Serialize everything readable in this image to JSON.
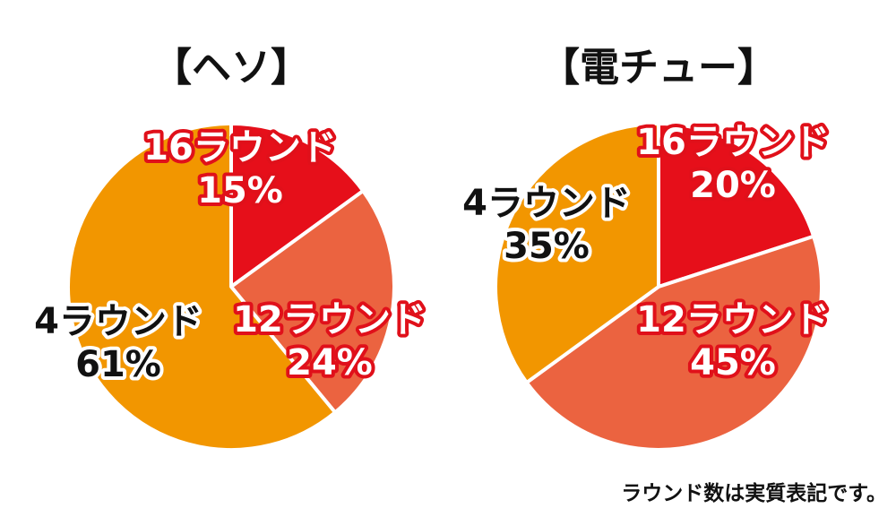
{
  "chart_data": [
    {
      "type": "pie",
      "title": "【ヘソ】",
      "slices": [
        {
          "label": "16ラウンド",
          "value": 15,
          "value_label": "15%",
          "color": "#e60f1a"
        },
        {
          "label": "12ラウンド",
          "value": 24,
          "value_label": "24%",
          "color": "#eb6340"
        },
        {
          "label": "4ラウンド",
          "value": 61,
          "value_label": "61%",
          "color": "#f29600"
        }
      ]
    },
    {
      "type": "pie",
      "title": "【電チュー】",
      "slices": [
        {
          "label": "16ラウンド",
          "value": 20,
          "value_label": "20%",
          "color": "#e60f1a"
        },
        {
          "label": "12ラウンド",
          "value": 45,
          "value_label": "45%",
          "color": "#eb6340"
        },
        {
          "label": "4ラウンド",
          "value": 35,
          "value_label": "35%",
          "color": "#f29600"
        }
      ]
    }
  ],
  "footnote": "ラウンド数は実質表記です。"
}
